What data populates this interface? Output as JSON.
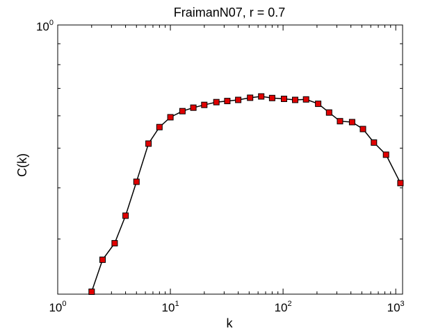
{
  "chart_data": {
    "type": "line",
    "title": "FraimanN07, r = 0.7",
    "xlabel": "k",
    "ylabel": "C(k)",
    "xscale": "log",
    "yscale": "log",
    "xlim": [
      1,
      1150
    ],
    "ylim": [
      0.22,
      1.0
    ],
    "grid": false,
    "x_ticks": [
      {
        "base": "10",
        "exp": "0",
        "value": 1
      },
      {
        "base": "10",
        "exp": "1",
        "value": 10
      },
      {
        "base": "10",
        "exp": "2",
        "value": 100
      },
      {
        "base": "10",
        "exp": "3",
        "value": 1000
      }
    ],
    "y_ticks": [
      {
        "base": "10",
        "exp": "0",
        "value": 1
      }
    ],
    "series": [
      {
        "marker": "square",
        "marker_color": "#e00000",
        "line_color": "#000000",
        "x": [
          2,
          2.5,
          3.2,
          4,
          5,
          6.4,
          8,
          10,
          12.8,
          16,
          20,
          25.6,
          32,
          40,
          51,
          64,
          80,
          102,
          128,
          160,
          205,
          256,
          320,
          410,
          512,
          640,
          820,
          1100
        ],
        "y": [
          0.223,
          0.267,
          0.293,
          0.342,
          0.414,
          0.513,
          0.563,
          0.595,
          0.616,
          0.628,
          0.638,
          0.648,
          0.652,
          0.656,
          0.664,
          0.669,
          0.663,
          0.66,
          0.656,
          0.658,
          0.642,
          0.611,
          0.582,
          0.579,
          0.557,
          0.516,
          0.482,
          0.411
        ]
      }
    ]
  }
}
